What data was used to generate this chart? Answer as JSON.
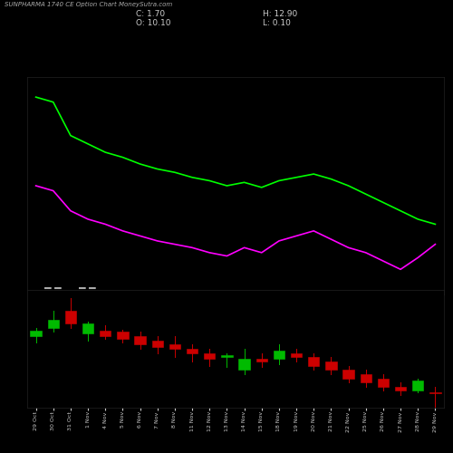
{
  "title": "SUNPHARMA 1740 CE Option Chart MoneySutra.com",
  "bg_color": "#000000",
  "text_color": "#cccccc",
  "dates": [
    "29 Oct",
    "30 Oct",
    "31 Oct",
    "1 Nov",
    "4 Nov",
    "5 Nov",
    "6 Nov",
    "7 Nov",
    "8 Nov",
    "11 Nov",
    "12 Nov",
    "13 Nov",
    "14 Nov",
    "15 Nov",
    "18 Nov",
    "19 Nov",
    "20 Nov",
    "21 Nov",
    "22 Nov",
    "25 Nov",
    "26 Nov",
    "27 Nov",
    "28 Nov",
    "29 Nov"
  ],
  "candles": [
    {
      "open": 8.5,
      "high": 9.5,
      "low": 7.8,
      "close": 9.2,
      "color": "green"
    },
    {
      "open": 9.5,
      "high": 11.5,
      "low": 9.0,
      "close": 10.5,
      "color": "green"
    },
    {
      "open": 11.5,
      "high": 13.0,
      "low": 9.5,
      "close": 10.0,
      "color": "red"
    },
    {
      "open": 10.0,
      "high": 10.2,
      "low": 8.0,
      "close": 8.8,
      "color": "green"
    },
    {
      "open": 9.2,
      "high": 9.8,
      "low": 8.2,
      "close": 8.5,
      "color": "red"
    },
    {
      "open": 9.0,
      "high": 9.3,
      "low": 7.8,
      "close": 8.2,
      "color": "red"
    },
    {
      "open": 8.5,
      "high": 9.0,
      "low": 7.0,
      "close": 7.5,
      "color": "red"
    },
    {
      "open": 8.0,
      "high": 8.5,
      "low": 6.5,
      "close": 7.2,
      "color": "red"
    },
    {
      "open": 7.5,
      "high": 8.5,
      "low": 6.0,
      "close": 7.0,
      "color": "red"
    },
    {
      "open": 7.0,
      "high": 7.5,
      "low": 5.5,
      "close": 6.5,
      "color": "red"
    },
    {
      "open": 6.5,
      "high": 7.0,
      "low": 5.0,
      "close": 5.8,
      "color": "red"
    },
    {
      "open": 6.0,
      "high": 6.5,
      "low": 4.8,
      "close": 6.2,
      "color": "green"
    },
    {
      "open": 5.8,
      "high": 7.0,
      "low": 4.0,
      "close": 4.5,
      "color": "green"
    },
    {
      "open": 5.5,
      "high": 6.5,
      "low": 4.8,
      "close": 5.8,
      "color": "red"
    },
    {
      "open": 5.8,
      "high": 7.5,
      "low": 5.2,
      "close": 6.8,
      "color": "green"
    },
    {
      "open": 6.5,
      "high": 7.0,
      "low": 5.5,
      "close": 6.0,
      "color": "red"
    },
    {
      "open": 6.0,
      "high": 6.5,
      "low": 4.5,
      "close": 5.0,
      "color": "red"
    },
    {
      "open": 5.5,
      "high": 6.0,
      "low": 4.0,
      "close": 4.5,
      "color": "red"
    },
    {
      "open": 4.5,
      "high": 5.0,
      "low": 3.0,
      "close": 3.5,
      "color": "red"
    },
    {
      "open": 4.0,
      "high": 4.5,
      "low": 2.5,
      "close": 3.0,
      "color": "red"
    },
    {
      "open": 3.5,
      "high": 4.0,
      "low": 2.0,
      "close": 2.5,
      "color": "red"
    },
    {
      "open": 2.5,
      "high": 3.0,
      "low": 1.5,
      "close": 2.0,
      "color": "red"
    },
    {
      "open": 2.0,
      "high": 3.5,
      "low": 1.8,
      "close": 3.2,
      "color": "green"
    },
    {
      "open": 1.7,
      "high": 2.5,
      "low": 0.1,
      "close": 1.7,
      "color": "red"
    }
  ],
  "line1_color": "#00ff00",
  "line2_color": "#ff00ff",
  "line1_values": [
    13.8,
    13.5,
    11.5,
    11.0,
    10.5,
    10.2,
    9.8,
    9.5,
    9.3,
    9.0,
    8.8,
    8.5,
    8.7,
    8.4,
    8.8,
    9.0,
    9.2,
    8.9,
    8.5,
    8.0,
    7.5,
    7.0,
    6.5,
    6.2
  ],
  "line2_values": [
    8.5,
    8.2,
    7.0,
    6.5,
    6.2,
    5.8,
    5.5,
    5.2,
    5.0,
    4.8,
    4.5,
    4.3,
    4.8,
    4.5,
    5.2,
    5.5,
    5.8,
    5.3,
    4.8,
    4.5,
    4.0,
    3.5,
    4.2,
    5.0
  ],
  "ylim_line": [
    2.0,
    15.0
  ],
  "ylim_candle": [
    0.0,
    14.0
  ]
}
